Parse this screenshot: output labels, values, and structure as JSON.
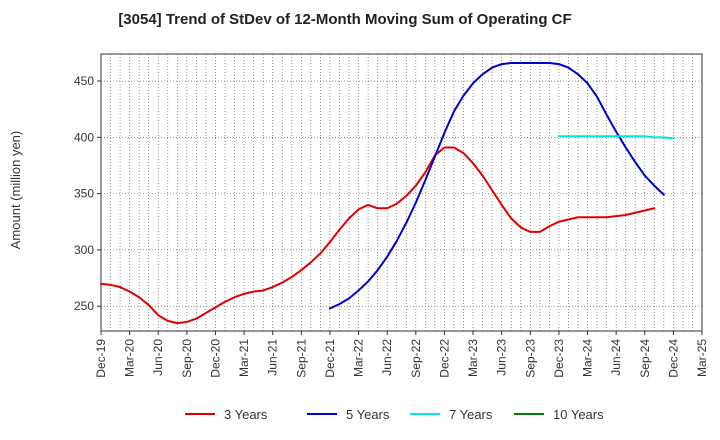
{
  "chart_data": {
    "type": "line",
    "title": "[3054]  Trend of StDev of 12-Month Moving Sum of Operating CF",
    "xlabel": "",
    "ylabel": "Amount (million yen)",
    "ylim": [
      228,
      474
    ],
    "y_ticks": [
      250,
      300,
      350,
      400,
      450
    ],
    "x_start": "Dec-19",
    "x_ticks": [
      "Dec-19",
      "Mar-20",
      "Jun-20",
      "Sep-20",
      "Dec-20",
      "Mar-21",
      "Jun-21",
      "Sep-21",
      "Dec-21",
      "Mar-22",
      "Jun-22",
      "Sep-22",
      "Dec-22",
      "Mar-23",
      "Jun-23",
      "Sep-23",
      "Dec-23",
      "Mar-24",
      "Jun-24",
      "Sep-24",
      "Dec-24",
      "Mar-25"
    ],
    "grid": true,
    "legend_position": "bottom",
    "series": [
      {
        "name": "3 Years",
        "color": "#e00000",
        "start": "Dec-19",
        "values": [
          270,
          269,
          267,
          263,
          258,
          251,
          242,
          237,
          235,
          236,
          239,
          244,
          249,
          254,
          258,
          261,
          263,
          264,
          267,
          271,
          276,
          282,
          289,
          297,
          307,
          318,
          328,
          336,
          340,
          337,
          337,
          341,
          348,
          357,
          369,
          384,
          391,
          391,
          386,
          377,
          366,
          353,
          340,
          328,
          320,
          316,
          316,
          321,
          325,
          327,
          329,
          329,
          329,
          329,
          330,
          331,
          333,
          335,
          337
        ]
      },
      {
        "name": "5 Years",
        "color": "#0000cc",
        "start": "Dec-21",
        "values": [
          248,
          252,
          257,
          264,
          272,
          282,
          294,
          308,
          324,
          342,
          362,
          383,
          404,
          423,
          437,
          448,
          456,
          462,
          465,
          466,
          466,
          466,
          466,
          466,
          465,
          462,
          456,
          448,
          436,
          420,
          405,
          391,
          378,
          366,
          357,
          349
        ]
      },
      {
        "name": "7 Years",
        "color": "#00e5e5",
        "start": "Dec-23",
        "values": [
          401,
          401,
          401,
          401,
          401,
          401,
          401,
          401,
          401,
          401,
          400,
          400,
          399
        ]
      },
      {
        "name": "10 Years",
        "color": "#008000",
        "start": "Dec-24",
        "values": []
      }
    ]
  }
}
